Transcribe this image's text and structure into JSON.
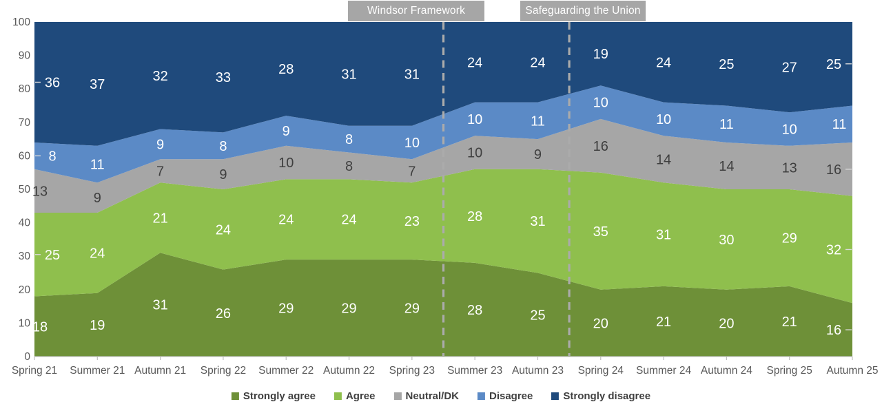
{
  "chart_data": {
    "type": "area",
    "stacked": true,
    "percent": true,
    "title": "",
    "xlabel": "",
    "ylabel": "",
    "ylim": [
      0,
      100
    ],
    "ytick_step": 10,
    "grid": false,
    "legend_position": "bottom",
    "categories": [
      "Spring 21",
      "Summer 21",
      "Autumn 21",
      "Spring 22",
      "Summer 22",
      "Autumn 22",
      "Spring 23",
      "Summer 23",
      "Autumn 23",
      "Spring 24",
      "Summer 24",
      "Autumn 24",
      "Spring 25",
      "Autumn 25"
    ],
    "series": [
      {
        "name": "Strongly agree",
        "color": "#6e9038",
        "label_color": "#ffffff",
        "values": [
          18,
          19,
          31,
          26,
          29,
          29,
          29,
          28,
          25,
          20,
          21,
          20,
          21,
          16
        ]
      },
      {
        "name": "Agree",
        "color": "#8fbf4d",
        "label_color": "#ffffff",
        "values": [
          25,
          24,
          21,
          24,
          24,
          24,
          23,
          28,
          31,
          35,
          31,
          30,
          29,
          32
        ]
      },
      {
        "name": "Neutral/DK",
        "color": "#a6a6a6",
        "label_color": "#3f3f3f",
        "values": [
          13,
          9,
          7,
          9,
          10,
          8,
          7,
          10,
          9,
          16,
          14,
          14,
          13,
          16
        ]
      },
      {
        "name": "Disagree",
        "color": "#5b8ac6",
        "label_color": "#ffffff",
        "values": [
          8,
          11,
          9,
          8,
          9,
          8,
          10,
          10,
          11,
          10,
          10,
          11,
          10,
          11
        ]
      },
      {
        "name": "Strongly disagree",
        "color": "#1f4a7c",
        "label_color": "#ffffff",
        "values": [
          36,
          37,
          32,
          33,
          28,
          31,
          31,
          24,
          24,
          19,
          24,
          25,
          27,
          25
        ]
      }
    ],
    "annotations": [
      {
        "label": "Windsor Framework",
        "between": [
          "Spring 23",
          "Summer 23"
        ]
      },
      {
        "label": "Safeguarding the Union",
        "between": [
          "Autumn 23",
          "Spring 24"
        ]
      }
    ],
    "edge_leaders": {
      "first": [
        1,
        3,
        4
      ],
      "last": [
        0,
        1,
        2,
        4
      ]
    },
    "style": {
      "axis_label_color": "#595959",
      "axis_line_color": "#bfbfbf",
      "annotation_bg": "#a6a6a6",
      "annotation_text": "#ffffff",
      "annotation_line_color": "#ababab",
      "leader_line_color": "#d9d9d9",
      "legend_text_color": "#404040"
    }
  }
}
